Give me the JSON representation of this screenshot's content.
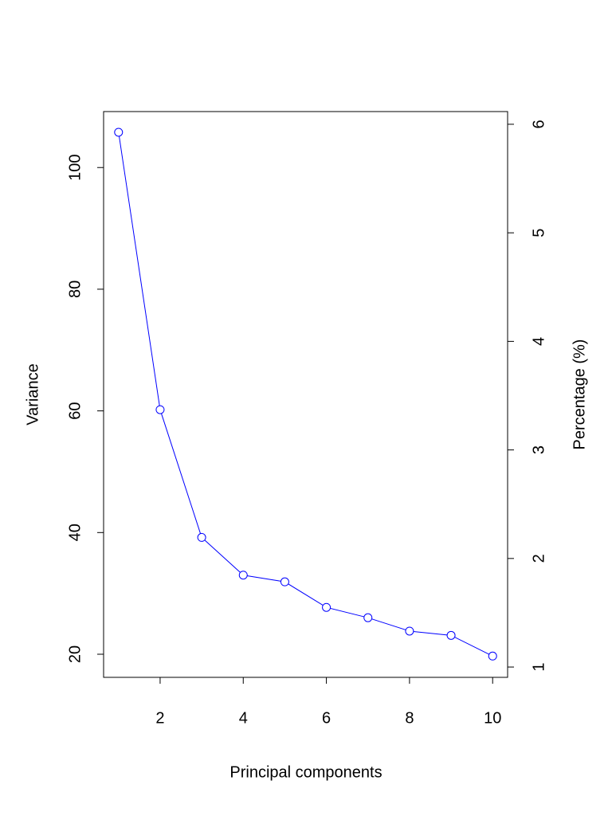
{
  "chart_data": {
    "type": "line",
    "xlabel": "Principal components",
    "ylabel": "Variance",
    "y2label": "Percentage (%)",
    "x": [
      1,
      2,
      3,
      4,
      5,
      6,
      7,
      8,
      9,
      10
    ],
    "series": [
      {
        "color": "#0000ff",
        "values": [
          105.8,
          60.2,
          39.2,
          33.0,
          31.9,
          27.7,
          26.0,
          23.8,
          23.1,
          19.7
        ]
      }
    ],
    "xlim": [
      0.64,
      10.36
    ],
    "xticks": [
      2,
      4,
      6,
      8,
      10
    ],
    "ylim": [
      16.2,
      109.2
    ],
    "yticks": [
      20,
      40,
      60,
      80,
      100
    ],
    "y2lim": [
      0.905,
      6.117
    ],
    "y2ticks": [
      1,
      2,
      3,
      4,
      5,
      6
    ]
  }
}
